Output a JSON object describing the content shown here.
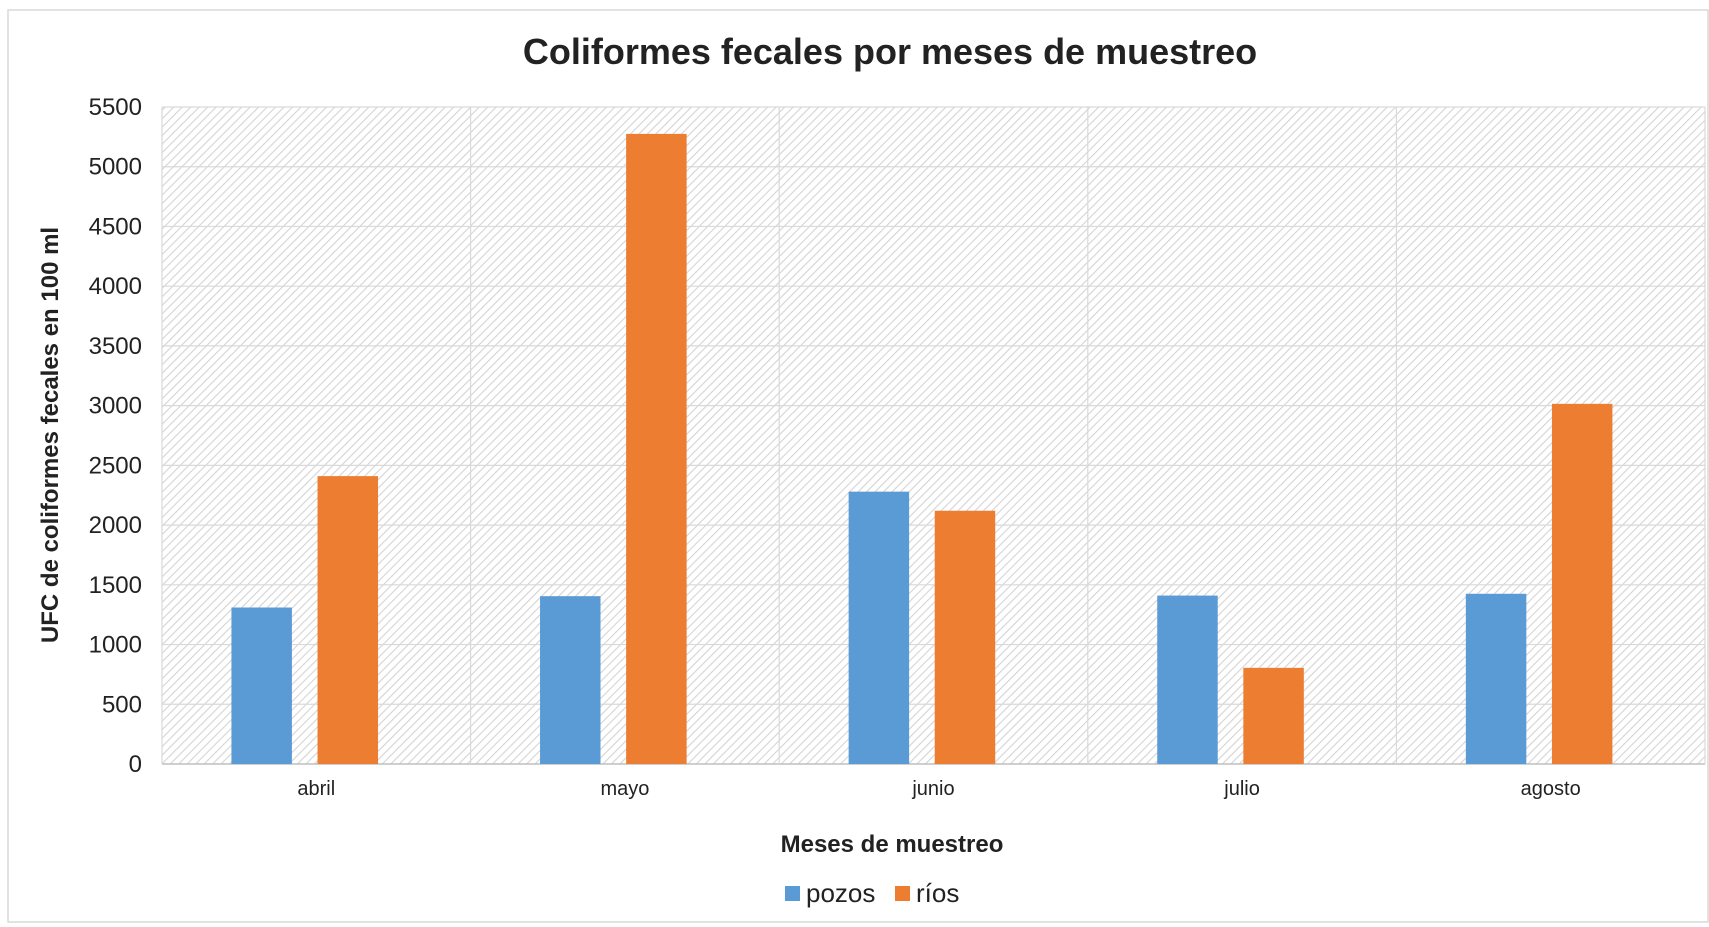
{
  "chart_data": {
    "type": "bar",
    "title": "Coliformes fecales por meses de muestreo",
    "xlabel": "Meses de muestreo",
    "ylabel": "UFC de coliformes fecales en 100 ml",
    "categories": [
      "abril",
      "mayo",
      "junio",
      "julio",
      "agosto"
    ],
    "series": [
      {
        "name": "pozos",
        "color": "#5b9bd5",
        "values": [
          1310,
          1405,
          2280,
          1410,
          1425
        ]
      },
      {
        "name": "ríos",
        "color": "#ed7d31",
        "values": [
          2410,
          5275,
          2120,
          805,
          3015
        ]
      }
    ],
    "ylim": [
      0,
      5500
    ],
    "yticks": [
      0,
      500,
      1000,
      1500,
      2000,
      2500,
      3000,
      3500,
      4000,
      4500,
      5000,
      5500
    ],
    "grid": true,
    "legend_position": "bottom"
  }
}
